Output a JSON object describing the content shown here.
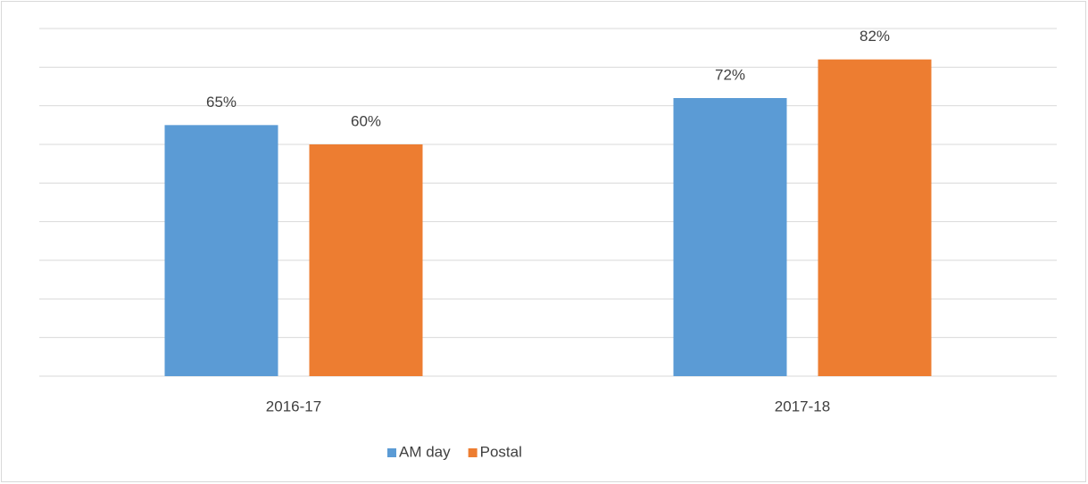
{
  "chart_data": {
    "type": "bar",
    "categories": [
      "2016-17",
      "2017-18"
    ],
    "series": [
      {
        "name": "AM day",
        "color": "#5b9bd5",
        "values": [
          65,
          72
        ],
        "value_labels": [
          "65%",
          "72%"
        ]
      },
      {
        "name": "Postal",
        "color": "#ed7d31",
        "values": [
          60,
          82
        ],
        "value_labels": [
          "60%",
          "82%"
        ]
      }
    ],
    "ylim": [
      0,
      90
    ],
    "yticks": [
      0,
      10,
      20,
      30,
      40,
      50,
      60,
      70,
      80,
      90
    ],
    "grid": true,
    "legend": "bottom"
  }
}
